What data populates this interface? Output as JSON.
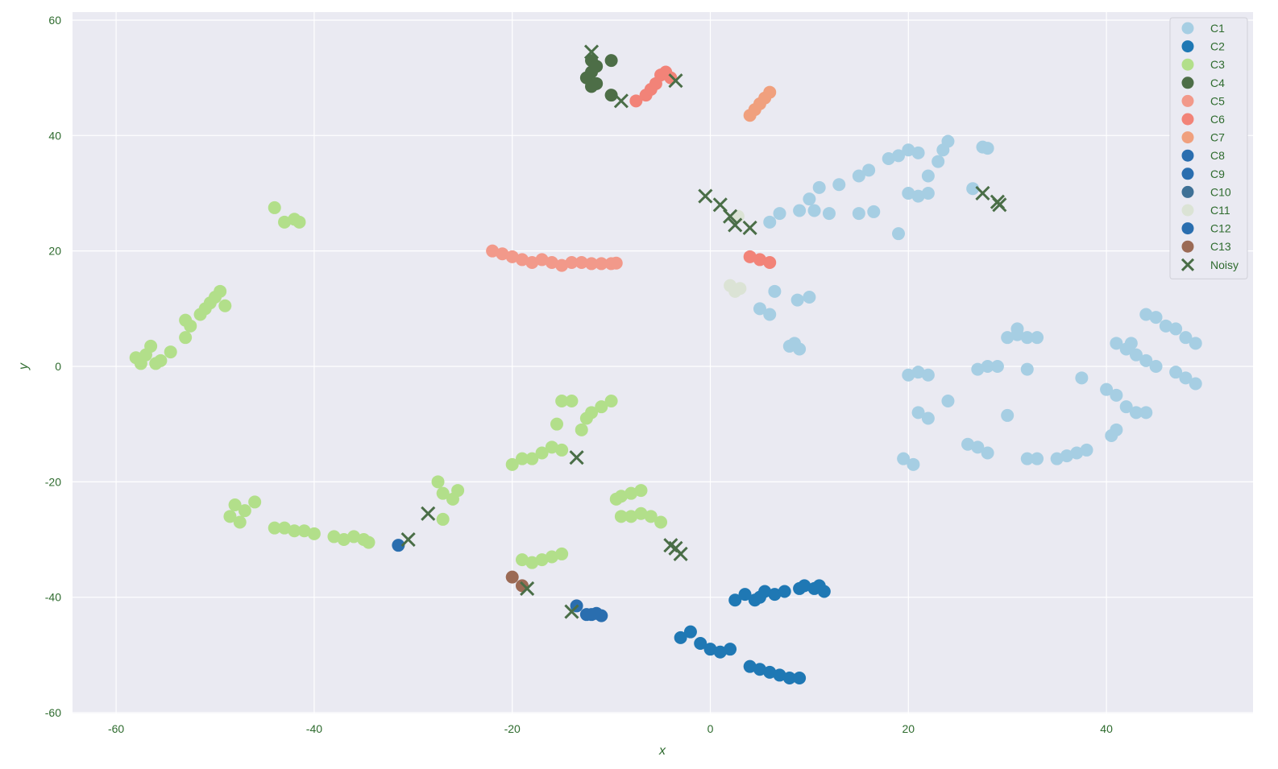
{
  "chart_data": {
    "type": "scatter",
    "xlabel": "x",
    "ylabel": "y",
    "xlim": [
      -64.5,
      55
    ],
    "ylim": [
      -60,
      61
    ],
    "xticks": [
      "-60",
      "-40",
      "-20",
      "0",
      "20",
      "40"
    ],
    "yticks": [
      "-60",
      "-40",
      "-20",
      "0",
      "20",
      "40",
      "60"
    ],
    "grid": true,
    "legend_position": "top-right",
    "series": [
      {
        "name": "C1",
        "color": "#a6cee3",
        "marker": "circle",
        "points": [
          [
            6,
            25
          ],
          [
            7,
            26.5
          ],
          [
            9,
            27
          ],
          [
            10.5,
            27
          ],
          [
            12,
            26.5
          ],
          [
            10,
            29
          ],
          [
            11,
            31
          ],
          [
            13,
            31.5
          ],
          [
            15,
            33
          ],
          [
            16,
            34
          ],
          [
            18,
            36
          ],
          [
            19,
            36.5
          ],
          [
            20,
            37.5
          ],
          [
            21,
            37
          ],
          [
            22,
            33
          ],
          [
            23,
            35.5
          ],
          [
            23.5,
            37.5
          ],
          [
            24,
            39
          ],
          [
            20,
            30
          ],
          [
            21,
            29.5
          ],
          [
            22,
            30
          ],
          [
            19,
            23
          ],
          [
            15,
            26.5
          ],
          [
            16.5,
            26.8
          ],
          [
            27.5,
            38
          ],
          [
            28,
            37.8
          ],
          [
            26.5,
            30.8
          ],
          [
            8.8,
            11.5
          ],
          [
            10,
            12
          ],
          [
            6.5,
            13
          ],
          [
            5,
            10
          ],
          [
            6,
            9
          ],
          [
            8,
            3.5
          ],
          [
            8.5,
            4
          ],
          [
            9,
            3
          ],
          [
            20,
            -1.5
          ],
          [
            21,
            -1
          ],
          [
            22,
            -1.5
          ],
          [
            21,
            -8
          ],
          [
            22,
            -9
          ],
          [
            24,
            -6
          ],
          [
            27,
            -0.5
          ],
          [
            28,
            0
          ],
          [
            29,
            0
          ],
          [
            30,
            5
          ],
          [
            31,
            5.5
          ],
          [
            32,
            5
          ],
          [
            33,
            5
          ],
          [
            31,
            6.5
          ],
          [
            32,
            -0.5
          ],
          [
            30,
            -8.5
          ],
          [
            26,
            -13.5
          ],
          [
            27,
            -14
          ],
          [
            28,
            -15
          ],
          [
            32,
            -16
          ],
          [
            33,
            -16
          ],
          [
            35,
            -16
          ],
          [
            36,
            -15.5
          ],
          [
            37,
            -15
          ],
          [
            38,
            -14.5
          ],
          [
            19.5,
            -16
          ],
          [
            20.5,
            -17
          ],
          [
            37.5,
            -2
          ],
          [
            40,
            -4
          ],
          [
            41,
            -5
          ],
          [
            42,
            -7
          ],
          [
            43,
            -8
          ],
          [
            40.5,
            -12
          ],
          [
            41,
            -11
          ],
          [
            44,
            -8
          ],
          [
            41,
            4
          ],
          [
            42,
            3
          ],
          [
            43,
            2
          ],
          [
            44,
            1
          ],
          [
            45,
            0
          ],
          [
            42.5,
            4
          ],
          [
            44,
            9
          ],
          [
            45,
            8.5
          ],
          [
            46,
            7
          ],
          [
            47,
            6.5
          ],
          [
            48,
            5
          ],
          [
            49,
            4
          ],
          [
            47,
            -1
          ],
          [
            48,
            -2
          ],
          [
            49,
            -3
          ]
        ]
      },
      {
        "name": "C2",
        "color": "#1f78b4",
        "marker": "circle",
        "points": [
          [
            2.5,
            -40.5
          ],
          [
            3.5,
            -39.5
          ],
          [
            4.5,
            -40.5
          ],
          [
            5,
            -40
          ],
          [
            5.5,
            -39
          ],
          [
            6.5,
            -39.5
          ],
          [
            7.5,
            -39
          ],
          [
            9,
            -38.5
          ],
          [
            9.5,
            -38
          ],
          [
            10.5,
            -38.5
          ],
          [
            11,
            -38
          ],
          [
            11.5,
            -39
          ],
          [
            -3,
            -47
          ],
          [
            -2,
            -46
          ],
          [
            -1,
            -48
          ],
          [
            0,
            -49
          ],
          [
            1,
            -49.5
          ],
          [
            2,
            -49
          ],
          [
            4,
            -52
          ],
          [
            5,
            -52.5
          ],
          [
            6,
            -53
          ],
          [
            7,
            -53.5
          ],
          [
            8,
            -54
          ],
          [
            9,
            -54
          ]
        ]
      },
      {
        "name": "C3",
        "color": "#b2df8a",
        "marker": "circle",
        "points": [
          [
            -58,
            1.5
          ],
          [
            -57.5,
            0.5
          ],
          [
            -57,
            2
          ],
          [
            -56.5,
            3.5
          ],
          [
            -56,
            0.5
          ],
          [
            -55.5,
            1
          ],
          [
            -54.5,
            2.5
          ],
          [
            -53,
            8
          ],
          [
            -53,
            5
          ],
          [
            -52.5,
            7
          ],
          [
            -51.5,
            9
          ],
          [
            -51,
            10
          ],
          [
            -50.5,
            11
          ],
          [
            -50,
            12
          ],
          [
            -49.5,
            13
          ],
          [
            -49,
            10.5
          ],
          [
            -44,
            27.5
          ],
          [
            -43,
            25
          ],
          [
            -42,
            25.5
          ],
          [
            -41.5,
            25
          ],
          [
            -48.5,
            -26
          ],
          [
            -48,
            -24
          ],
          [
            -47.5,
            -27
          ],
          [
            -47,
            -25
          ],
          [
            -46,
            -23.5
          ],
          [
            -44,
            -28
          ],
          [
            -43,
            -28
          ],
          [
            -42,
            -28.5
          ],
          [
            -41,
            -28.5
          ],
          [
            -40,
            -29
          ],
          [
            -38,
            -29.5
          ],
          [
            -37,
            -30
          ],
          [
            -36,
            -29.5
          ],
          [
            -35,
            -30
          ],
          [
            -34.5,
            -30.5
          ],
          [
            -27.5,
            -20
          ],
          [
            -27,
            -22
          ],
          [
            -26,
            -23
          ],
          [
            -25.5,
            -21.5
          ],
          [
            -27,
            -26.5
          ],
          [
            -20,
            -17
          ],
          [
            -19,
            -16
          ],
          [
            -18,
            -16
          ],
          [
            -17,
            -15
          ],
          [
            -16,
            -14
          ],
          [
            -15,
            -14.5
          ],
          [
            -15.5,
            -10
          ],
          [
            -15,
            -6
          ],
          [
            -14,
            -6
          ],
          [
            -13,
            -11
          ],
          [
            -12.5,
            -9
          ],
          [
            -12,
            -8
          ],
          [
            -11,
            -7
          ],
          [
            -10,
            -6
          ],
          [
            -19,
            -33.5
          ],
          [
            -18,
            -34
          ],
          [
            -17,
            -33.5
          ],
          [
            -16,
            -33
          ],
          [
            -15,
            -32.5
          ],
          [
            -9.5,
            -23
          ],
          [
            -9,
            -22.5
          ],
          [
            -8,
            -22
          ],
          [
            -7,
            -21.5
          ],
          [
            -9,
            -26
          ],
          [
            -8,
            -26
          ],
          [
            -7,
            -25.5
          ],
          [
            -6,
            -26
          ],
          [
            -5,
            -27
          ]
        ]
      },
      {
        "name": "C4",
        "color": "#4d6e47",
        "marker": "circle",
        "points": [
          [
            -12.5,
            50
          ],
          [
            -12,
            51
          ],
          [
            -12,
            53
          ],
          [
            -11.5,
            52
          ],
          [
            -11.5,
            49
          ],
          [
            -12,
            48.5
          ],
          [
            -10,
            53
          ],
          [
            -10,
            47
          ]
        ]
      },
      {
        "name": "C5",
        "color": "#f2998a",
        "marker": "circle",
        "points": [
          [
            -22,
            20
          ],
          [
            -21,
            19.5
          ],
          [
            -20,
            19
          ],
          [
            -19,
            18.5
          ],
          [
            -18,
            18
          ],
          [
            -17,
            18.5
          ],
          [
            -16,
            18
          ],
          [
            -15,
            17.5
          ],
          [
            -14,
            18
          ],
          [
            -13,
            18
          ],
          [
            -12,
            17.8
          ],
          [
            -11,
            17.8
          ],
          [
            -10,
            17.8
          ],
          [
            -9.5,
            17.9
          ]
        ]
      },
      {
        "name": "C6",
        "color": "#f28378",
        "marker": "circle",
        "points": [
          [
            -7.5,
            46
          ],
          [
            -6.5,
            47
          ],
          [
            -6,
            48
          ],
          [
            -5.5,
            49
          ],
          [
            -5,
            50.5
          ],
          [
            -4.5,
            51
          ],
          [
            -4,
            50
          ],
          [
            4,
            19
          ],
          [
            5,
            18.5
          ],
          [
            6,
            18
          ]
        ]
      },
      {
        "name": "C7",
        "color": "#f0a07e",
        "marker": "circle",
        "points": [
          [
            4,
            43.5
          ],
          [
            4.5,
            44.5
          ],
          [
            5,
            45.5
          ],
          [
            5.5,
            46.5
          ],
          [
            6,
            47.5
          ]
        ]
      },
      {
        "name": "C8",
        "color": "#2a6eaf",
        "marker": "circle",
        "points": [
          [
            -13.5,
            -41.5
          ],
          [
            -12.5,
            -43
          ],
          [
            -12,
            -43
          ],
          [
            -11.5,
            -42.8
          ],
          [
            -11,
            -43.2
          ]
        ]
      },
      {
        "name": "C9",
        "color": "#2a6eaf",
        "marker": "circle",
        "points": [
          [
            -31.5,
            -31
          ]
        ]
      },
      {
        "name": "C10",
        "color": "#3f7196",
        "marker": "circle",
        "points": []
      },
      {
        "name": "C11",
        "color": "#dbe3d5",
        "marker": "circle",
        "points": [
          [
            2,
            14
          ],
          [
            2.5,
            13
          ],
          [
            3,
            13.5
          ],
          [
            2.8,
            26
          ]
        ]
      },
      {
        "name": "C12",
        "color": "#2a6eaf",
        "marker": "circle",
        "points": []
      },
      {
        "name": "C13",
        "color": "#9b6a55",
        "marker": "circle",
        "points": [
          [
            -19,
            -38
          ],
          [
            -20,
            -36.5
          ]
        ]
      },
      {
        "name": "Noisy",
        "color": "#4a6e47",
        "marker": "x",
        "points": [
          [
            -12,
            54.5
          ],
          [
            -9,
            46
          ],
          [
            -3.5,
            49.5
          ],
          [
            -0.5,
            29.5
          ],
          [
            1,
            28
          ],
          [
            2.5,
            24.5
          ],
          [
            2,
            26
          ],
          [
            4,
            24
          ],
          [
            27.5,
            30
          ],
          [
            29,
            28.5
          ],
          [
            29.2,
            28
          ],
          [
            -13.5,
            -15.8
          ],
          [
            -28.5,
            -25.5
          ],
          [
            -30.5,
            -30
          ],
          [
            -18.5,
            -38.5
          ],
          [
            -14,
            -42.5
          ],
          [
            -4,
            -31
          ],
          [
            -3.5,
            -31.5
          ],
          [
            -3,
            -32.5
          ]
        ]
      }
    ]
  }
}
